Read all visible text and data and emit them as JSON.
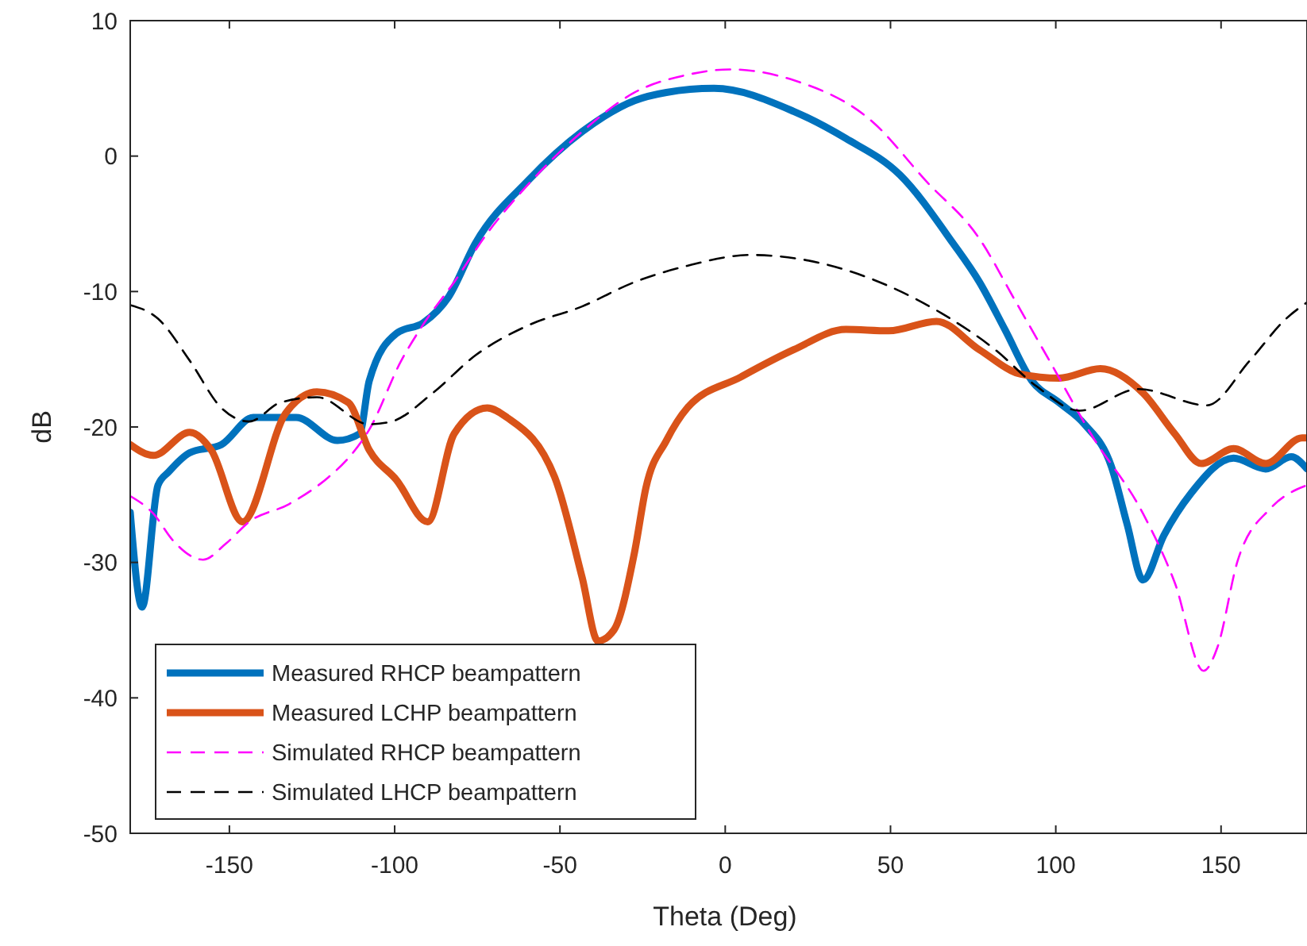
{
  "chart_data": {
    "type": "line",
    "xlabel": "Theta (Deg)",
    "ylabel": "dB",
    "xlim": [
      -180,
      176
    ],
    "ylim": [
      -50,
      10
    ],
    "xticks": [
      -150,
      -100,
      -50,
      0,
      50,
      100,
      150
    ],
    "yticks": [
      -50,
      -40,
      -30,
      -20,
      -10,
      0,
      10
    ],
    "grid": false,
    "legend": "bottom left",
    "series": [
      {
        "name": "Measured RHCP beampattern",
        "color": "#0072bd",
        "line_style": "solid",
        "x": [
          -180,
          -176.4,
          -171.6,
          -168.3,
          -162,
          -152.4,
          -142.8,
          -129.8,
          -117.3,
          -110.6,
          -107.7,
          -99.5,
          -91.3,
          -83.7,
          -75.5,
          -59.6,
          -43.3,
          -27.4,
          -17.8,
          -3.4,
          20.7,
          36.5,
          52.9,
          68.8,
          76.9,
          84.6,
          92.8,
          101,
          108.7,
          116.8,
          121.6,
          126.4,
          132.7,
          140.9,
          153.8,
          163.5,
          171.2,
          176
        ],
        "values": [
          -26.3,
          -33.3,
          -24.3,
          -23.3,
          -21.9,
          -21.3,
          -19.3,
          -19.3,
          -21,
          -20.5,
          -16.6,
          -13.1,
          -12.3,
          -10.4,
          -6.4,
          -1.8,
          1.8,
          4.1,
          4.7,
          5.0,
          3.3,
          1.3,
          -1.4,
          -6.4,
          -9.3,
          -12.8,
          -16.6,
          -18.2,
          -19.8,
          -22.9,
          -27.2,
          -31.3,
          -28,
          -24.9,
          -22.3,
          -23.1,
          -22.2,
          -23.1
        ]
      },
      {
        "name": "Measured LCHP beampattern",
        "color": "#d95319",
        "line_style": "solid",
        "x": [
          -180,
          -173,
          -162,
          -155.5,
          -146,
          -133,
          -123.5,
          -114,
          -107.7,
          -99.5,
          -90,
          -82,
          -72,
          -66,
          -51.6,
          -43.3,
          -38.5,
          -33.7,
          -27.4,
          -24,
          -17.8,
          -11.5,
          4.8,
          20.7,
          36.5,
          49.5,
          63.9,
          76.9,
          89.4,
          101,
          113.5,
          126.4,
          136,
          144,
          153.8,
          163.5,
          174.5,
          176
        ],
        "values": [
          -21.3,
          -22.1,
          -20.4,
          -21.7,
          -27,
          -19,
          -17.4,
          -18.2,
          -21.7,
          -23.9,
          -27,
          -20.5,
          -18.6,
          -19.3,
          -23.7,
          -31.1,
          -35.8,
          -35,
          -29.2,
          -24.5,
          -21,
          -18.6,
          -16.3,
          -14.3,
          -12.8,
          -12.9,
          -12.2,
          -14.3,
          -16.1,
          -16.4,
          -15.7,
          -17.5,
          -20.5,
          -22.7,
          -21.6,
          -22.7,
          -20.8,
          -20.8
        ]
      },
      {
        "name": "Simulated RHCP beampattern",
        "color": "#ff00ff",
        "line_style": "dashed",
        "x": [
          -180,
          -173,
          -167,
          -158,
          -151,
          -144,
          -132,
          -120,
          -114,
          -107.7,
          -98,
          -91,
          -82,
          -72,
          -60,
          -43.3,
          -27.4,
          -11.5,
          1.4,
          20.7,
          44.7,
          60.6,
          76.9,
          88,
          99,
          110.6,
          126.4,
          136,
          144.7,
          149,
          155,
          165,
          173,
          176
        ],
        "values": [
          -25.1,
          -26.4,
          -28.4,
          -29.8,
          -28.6,
          -27,
          -25.7,
          -23.7,
          -22.3,
          -20.2,
          -15.1,
          -12.3,
          -9.3,
          -5.7,
          -2.2,
          1.8,
          4.7,
          6.0,
          6.4,
          5.6,
          2.5,
          -1.8,
          -6.1,
          -10.8,
          -15.5,
          -20.5,
          -26.4,
          -31.5,
          -38,
          -36.2,
          -29.9,
          -26,
          -24.6,
          -24.3
        ]
      },
      {
        "name": "Simulated LHCP beampattern",
        "color": "#000000",
        "line_style": "dashed",
        "x": [
          -180,
          -171.6,
          -162,
          -152.4,
          -144,
          -134.6,
          -123.5,
          -107.7,
          -101,
          -88.5,
          -75.5,
          -59.6,
          -43.3,
          -27.4,
          -11.5,
          7.7,
          28.8,
          49.5,
          65.4,
          81.7,
          94.2,
          107.2,
          125,
          145.7,
          158.7,
          169.7,
          176
        ],
        "values": [
          -11,
          -12,
          -15.1,
          -18.6,
          -19.6,
          -18.2,
          -17.8,
          -19.8,
          -19.6,
          -17.5,
          -14.7,
          -12.5,
          -11.1,
          -9.3,
          -8.1,
          -7.3,
          -7.9,
          -9.6,
          -11.6,
          -14.3,
          -17,
          -18.8,
          -17.2,
          -18.4,
          -15.1,
          -12,
          -10.8
        ]
      }
    ]
  }
}
